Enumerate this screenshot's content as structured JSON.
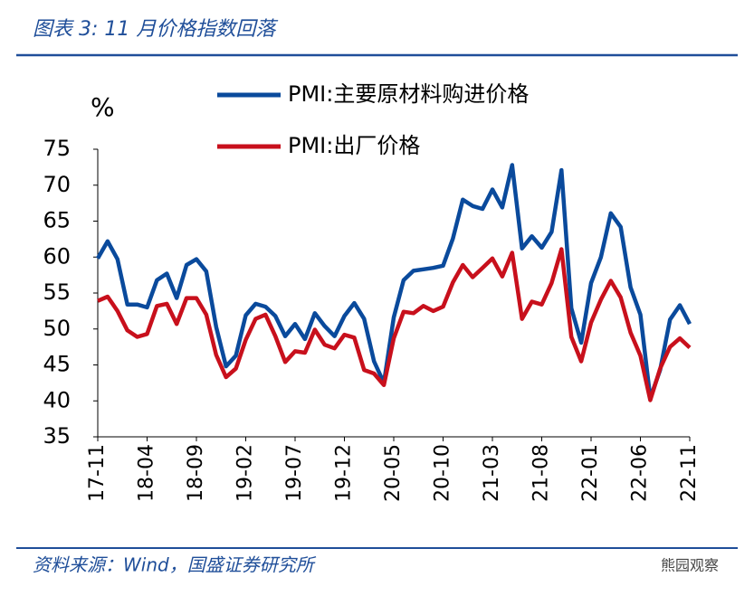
{
  "chart_data": {
    "type": "line",
    "title": "图表 3:  11 月价格指数回落",
    "source": "资料来源：Wind，国盛证券研究所",
    "watermark": "熊园观察",
    "y_label": "%",
    "categories": [
      "17-11",
      null,
      null,
      null,
      null,
      "18-04",
      null,
      null,
      null,
      null,
      "18-09",
      null,
      null,
      null,
      null,
      "19-02",
      null,
      null,
      null,
      null,
      "19-07",
      null,
      null,
      null,
      null,
      "19-12",
      null,
      null,
      null,
      null,
      "20-05",
      null,
      null,
      null,
      null,
      "20-10",
      null,
      null,
      null,
      null,
      "21-03",
      null,
      null,
      null,
      null,
      "21-08",
      null,
      null,
      null,
      null,
      "22-01",
      null,
      null,
      null,
      null,
      "22-06",
      null,
      null,
      null,
      null,
      "22-11"
    ],
    "series": [
      {
        "name": "PMI:主要原材料购进价格",
        "color": "#0a4a9c",
        "values": [
          59.8,
          62.2,
          59.7,
          53.4,
          53.4,
          53.0,
          56.8,
          57.7,
          54.3,
          58.9,
          59.7,
          58.0,
          50.3,
          44.8,
          46.3,
          51.9,
          53.5,
          53.1,
          51.8,
          49.0,
          50.7,
          48.6,
          52.2,
          50.4,
          49.0,
          51.8,
          53.6,
          51.4,
          45.5,
          42.5,
          51.6,
          56.8,
          58.1,
          58.3,
          58.5,
          58.8,
          62.6,
          68.0,
          67.1,
          66.7,
          69.4,
          66.9,
          72.8,
          61.2,
          62.9,
          61.3,
          63.5,
          72.1,
          52.9,
          48.1,
          56.4,
          60.0,
          66.1,
          64.2,
          55.8,
          52.0,
          40.4,
          44.3,
          51.3,
          53.3,
          50.7
        ]
      },
      {
        "name": "PMI:出厂价格",
        "color": "#c8101c",
        "values": [
          53.9,
          54.5,
          52.5,
          49.8,
          48.9,
          49.3,
          53.2,
          53.5,
          50.7,
          54.3,
          54.3,
          52.0,
          46.4,
          43.3,
          44.5,
          48.5,
          51.4,
          52.0,
          49.0,
          45.4,
          46.9,
          46.7,
          49.9,
          47.8,
          47.3,
          49.2,
          48.8,
          44.3,
          43.8,
          42.2,
          48.7,
          52.4,
          52.2,
          53.2,
          52.5,
          53.1,
          56.5,
          58.9,
          57.2,
          58.5,
          59.8,
          57.3,
          60.6,
          51.4,
          53.8,
          53.4,
          56.4,
          61.1,
          48.9,
          45.5,
          50.9,
          54.1,
          56.7,
          54.4,
          49.5,
          46.3,
          40.1,
          44.5,
          47.5,
          48.7,
          47.4
        ]
      }
    ],
    "ylim": [
      35,
      75
    ],
    "yticks": [
      35,
      40,
      45,
      50,
      55,
      60,
      65,
      70,
      75
    ],
    "grid": false
  }
}
